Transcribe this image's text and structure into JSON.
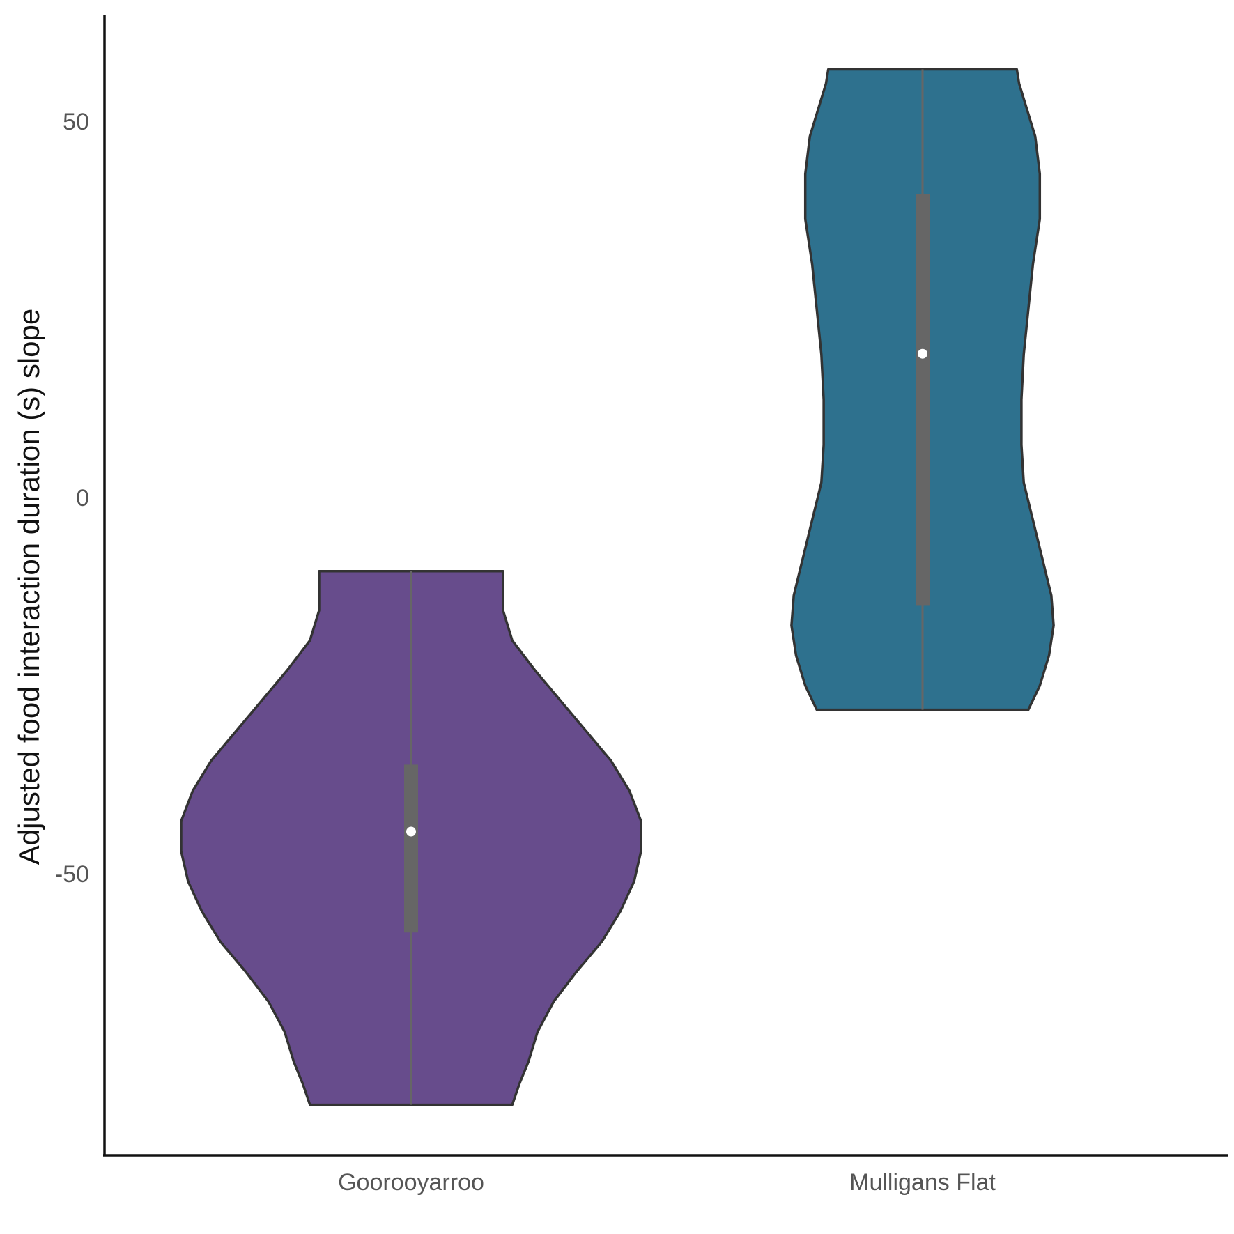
{
  "chart_data": {
    "type": "violin",
    "title": "",
    "xlabel": "",
    "ylabel": "Adjusted food interaction duration (s) slope",
    "ylim": [
      -87,
      64
    ],
    "yticks": [
      -50,
      0,
      50
    ],
    "grid": false,
    "legend": "none",
    "categories": [
      "Goorooyarroo",
      "Mulligans Flat"
    ],
    "groups": [
      {
        "name": "Goorooyarroo",
        "color": "#674c8c",
        "min": -80.7,
        "max": -9.8,
        "q1": -57.8,
        "median": -44.4,
        "q3": -35.5,
        "density": [
          {
            "y": -80.7,
            "w": 0.44
          },
          {
            "y": -78.0,
            "w": 0.47
          },
          {
            "y": -75.0,
            "w": 0.51
          },
          {
            "y": -71.0,
            "w": 0.55
          },
          {
            "y": -67.0,
            "w": 0.62
          },
          {
            "y": -63.0,
            "w": 0.72
          },
          {
            "y": -59.0,
            "w": 0.83
          },
          {
            "y": -55.0,
            "w": 0.91
          },
          {
            "y": -51.0,
            "w": 0.97
          },
          {
            "y": -47.0,
            "w": 1.0
          },
          {
            "y": -43.0,
            "w": 1.0
          },
          {
            "y": -39.0,
            "w": 0.95
          },
          {
            "y": -35.0,
            "w": 0.87
          },
          {
            "y": -31.0,
            "w": 0.76
          },
          {
            "y": -27.0,
            "w": 0.65
          },
          {
            "y": -23.0,
            "w": 0.54
          },
          {
            "y": -19.0,
            "w": 0.44
          },
          {
            "y": -15.0,
            "w": 0.4
          },
          {
            "y": -12.0,
            "w": 0.4
          },
          {
            "y": -9.8,
            "w": 0.4
          }
        ]
      },
      {
        "name": "Mulligans Flat",
        "color": "#2e718e",
        "min": -28.2,
        "max": 56.9,
        "q1": -14.3,
        "median": 19.1,
        "q3": 40.3,
        "density": [
          {
            "y": -28.2,
            "w": 0.46
          },
          {
            "y": -25.0,
            "w": 0.51
          },
          {
            "y": -21.0,
            "w": 0.55
          },
          {
            "y": -17.0,
            "w": 0.57
          },
          {
            "y": -13.0,
            "w": 0.56
          },
          {
            "y": -8.0,
            "w": 0.52
          },
          {
            "y": -3.0,
            "w": 0.48
          },
          {
            "y": 2.0,
            "w": 0.44
          },
          {
            "y": 7.0,
            "w": 0.43
          },
          {
            "y": 13.0,
            "w": 0.43
          },
          {
            "y": 19.0,
            "w": 0.44
          },
          {
            "y": 25.0,
            "w": 0.46
          },
          {
            "y": 31.0,
            "w": 0.48
          },
          {
            "y": 37.0,
            "w": 0.51
          },
          {
            "y": 43.0,
            "w": 0.51
          },
          {
            "y": 48.0,
            "w": 0.49
          },
          {
            "y": 52.0,
            "w": 0.45
          },
          {
            "y": 55.0,
            "w": 0.42
          },
          {
            "y": 56.9,
            "w": 0.41
          }
        ]
      }
    ]
  }
}
